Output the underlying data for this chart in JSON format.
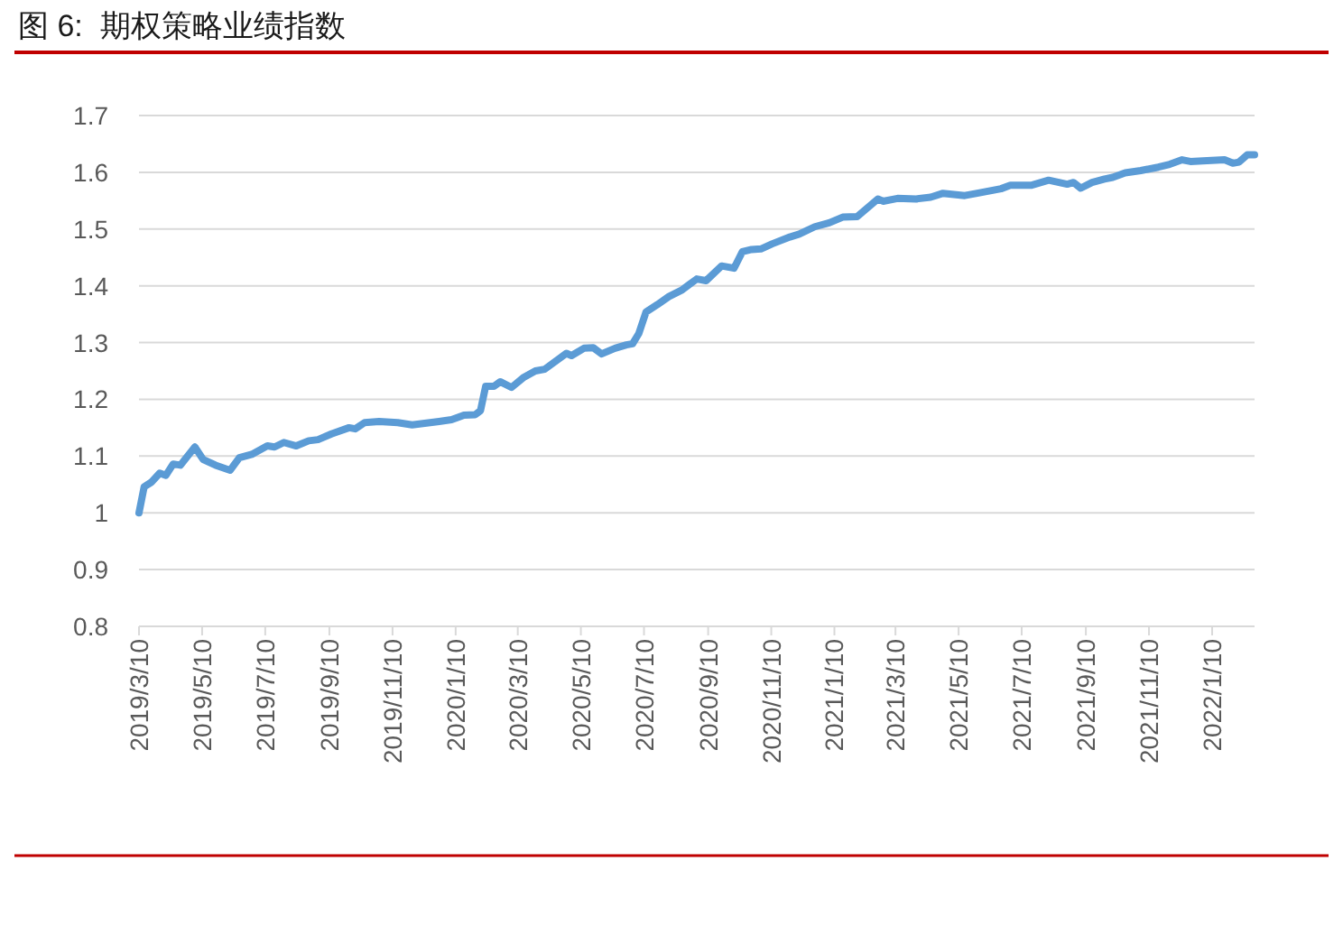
{
  "chart_data": {
    "type": "line",
    "title": "图 6:  期权策略业绩指数",
    "x": [
      "2019-03-10",
      "2019-03-15",
      "2019-03-22",
      "2019-03-30",
      "2019-04-05",
      "2019-04-12",
      "2019-04-19",
      "2019-05-03",
      "2019-05-11",
      "2019-05-23",
      "2019-06-06",
      "2019-06-15",
      "2019-06-27",
      "2019-07-12",
      "2019-07-19",
      "2019-07-28",
      "2019-08-09",
      "2019-08-21",
      "2019-08-30",
      "2019-09-12",
      "2019-09-29",
      "2019-10-05",
      "2019-10-14",
      "2019-10-28",
      "2019-11-15",
      "2019-11-29",
      "2019-12-25",
      "2020-01-06",
      "2020-01-18",
      "2020-01-29",
      "2020-02-03",
      "2020-02-08",
      "2020-02-16",
      "2020-02-22",
      "2020-03-04",
      "2020-03-16",
      "2020-03-27",
      "2020-04-05",
      "2020-04-26",
      "2020-05-01",
      "2020-05-13",
      "2020-05-22",
      "2020-05-30",
      "2020-06-12",
      "2020-06-23",
      "2020-06-29",
      "2020-07-05",
      "2020-07-12",
      "2020-07-23",
      "2020-08-03",
      "2020-08-16",
      "2020-08-30",
      "2020-09-08",
      "2020-09-23",
      "2020-10-05",
      "2020-10-13",
      "2020-10-22",
      "2020-10-31",
      "2020-11-11",
      "2020-11-28",
      "2020-12-07",
      "2020-12-22",
      "2021-01-05",
      "2021-01-18",
      "2021-02-01",
      "2021-02-21",
      "2021-02-26",
      "2021-03-12",
      "2021-03-30",
      "2021-04-13",
      "2021-04-25",
      "2021-05-16",
      "2021-05-28",
      "2021-06-20",
      "2021-06-29",
      "2021-07-19",
      "2021-08-05",
      "2021-08-23",
      "2021-08-29",
      "2021-09-05",
      "2021-09-16",
      "2021-09-28",
      "2021-10-06",
      "2021-10-18",
      "2021-11-02",
      "2021-11-19",
      "2021-11-30",
      "2021-12-12",
      "2021-12-20",
      "2022-01-01",
      "2022-01-22",
      "2022-01-30",
      "2022-02-05",
      "2022-02-13",
      "2022-02-20"
    ],
    "series": [
      {
        "color": "#5b9bd5",
        "values": [
          1.0,
          1.046,
          1.054,
          1.07,
          1.066,
          1.086,
          1.084,
          1.116,
          1.094,
          1.084,
          1.075,
          1.097,
          1.103,
          1.118,
          1.116,
          1.124,
          1.118,
          1.127,
          1.129,
          1.139,
          1.15,
          1.148,
          1.159,
          1.161,
          1.159,
          1.155,
          1.161,
          1.164,
          1.172,
          1.173,
          1.18,
          1.223,
          1.223,
          1.231,
          1.221,
          1.239,
          1.25,
          1.253,
          1.281,
          1.277,
          1.29,
          1.291,
          1.28,
          1.29,
          1.296,
          1.298,
          1.316,
          1.354,
          1.367,
          1.381,
          1.393,
          1.412,
          1.409,
          1.435,
          1.431,
          1.46,
          1.464,
          1.465,
          1.474,
          1.486,
          1.491,
          1.504,
          1.511,
          1.521,
          1.522,
          1.553,
          1.549,
          1.554,
          1.553,
          1.556,
          1.563,
          1.559,
          1.563,
          1.571,
          1.577,
          1.577,
          1.586,
          1.579,
          1.582,
          1.572,
          1.582,
          1.588,
          1.591,
          1.599,
          1.603,
          1.609,
          1.614,
          1.622,
          1.619,
          1.62,
          1.622,
          1.616,
          1.618,
          1.631,
          1.631
        ]
      }
    ],
    "xlim": [
      "2019-03-10",
      "2022-02-20"
    ],
    "xticks": [
      {
        "value": "2019-03-10",
        "label": "2019/3/10"
      },
      {
        "value": "2019-05-10",
        "label": "2019/5/10"
      },
      {
        "value": "2019-07-10",
        "label": "2019/7/10"
      },
      {
        "value": "2019-09-10",
        "label": "2019/9/10"
      },
      {
        "value": "2019-11-10",
        "label": "2019/11/10"
      },
      {
        "value": "2020-01-10",
        "label": "2020/1/10"
      },
      {
        "value": "2020-03-10",
        "label": "2020/3/10"
      },
      {
        "value": "2020-05-10",
        "label": "2020/5/10"
      },
      {
        "value": "2020-07-10",
        "label": "2020/7/10"
      },
      {
        "value": "2020-09-10",
        "label": "2020/9/10"
      },
      {
        "value": "2020-11-10",
        "label": "2020/11/10"
      },
      {
        "value": "2021-01-10",
        "label": "2021/1/10"
      },
      {
        "value": "2021-03-10",
        "label": "2021/3/10"
      },
      {
        "value": "2021-05-10",
        "label": "2021/5/10"
      },
      {
        "value": "2021-07-10",
        "label": "2021/7/10"
      },
      {
        "value": "2021-09-10",
        "label": "2021/9/10"
      },
      {
        "value": "2021-11-10",
        "label": "2021/11/10"
      },
      {
        "value": "2022-01-10",
        "label": "2022/1/10"
      }
    ],
    "ylim": [
      0.8,
      1.7
    ],
    "yticks": [
      0.8,
      0.9,
      1,
      1.1,
      1.2,
      1.3,
      1.4,
      1.5,
      1.6,
      1.7
    ],
    "grid": "y",
    "marker": "none",
    "line_style": "solid"
  }
}
